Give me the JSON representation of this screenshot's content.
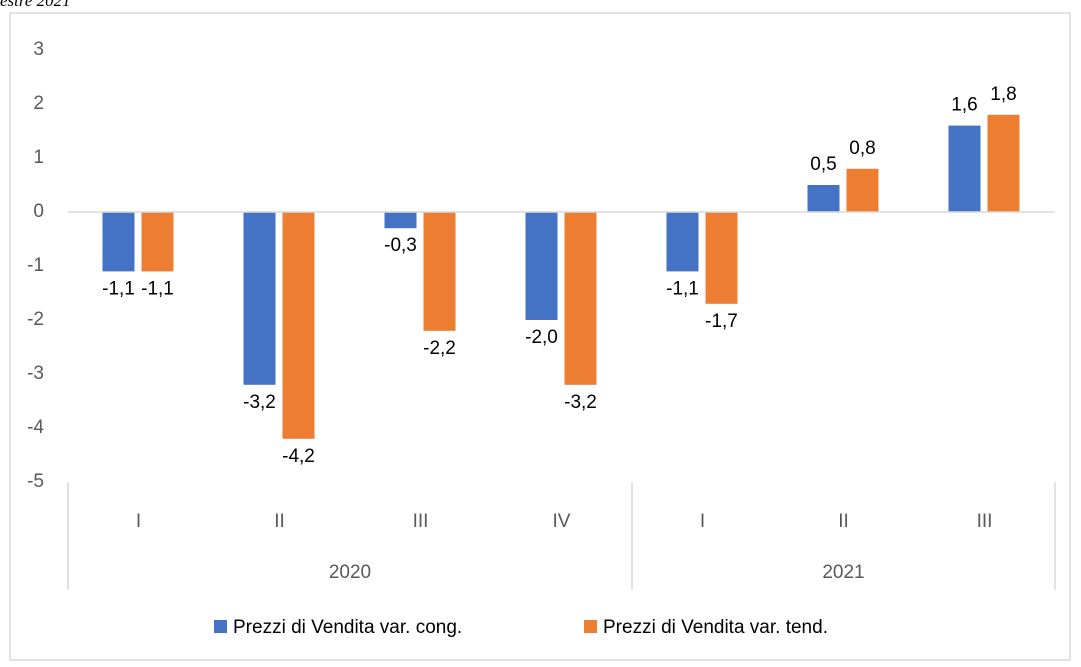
{
  "caption": "estre 2021",
  "chart_data": {
    "type": "bar",
    "categories": [
      "I",
      "II",
      "III",
      "IV",
      "I",
      "II",
      "III"
    ],
    "groups": [
      {
        "name": "2020",
        "count": 4
      },
      {
        "name": "2021",
        "count": 3
      }
    ],
    "series": [
      {
        "name": "Prezzi di Vendita var. cong.",
        "color": "#4472c4",
        "values": [
          -1.1,
          -3.2,
          -0.3,
          -2.0,
          -1.1,
          0.5,
          1.6
        ],
        "value_labels": [
          "-1,1",
          "-3,2",
          "-0,3",
          "-2,0",
          "-1,1",
          "0,5",
          "1,6"
        ]
      },
      {
        "name": "Prezzi di Vendita var. tend.",
        "color": "#ed7d31",
        "values": [
          -1.1,
          -4.2,
          -2.2,
          -3.2,
          -1.7,
          0.8,
          1.8
        ],
        "value_labels": [
          "-1,1",
          "-4,2",
          "-2,2",
          "-3,2",
          "-1,7",
          "0,8",
          "1,8"
        ]
      }
    ],
    "ylim": [
      -5,
      3
    ],
    "yticks": [
      3,
      2,
      1,
      0,
      -1,
      -2,
      -3,
      -4,
      -5
    ],
    "grid": false,
    "legend": "bottom"
  }
}
